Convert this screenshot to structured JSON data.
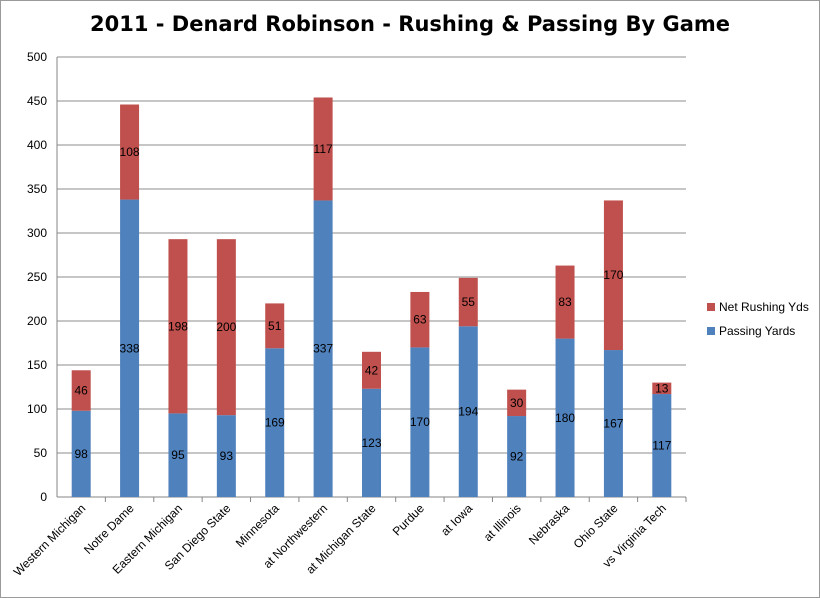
{
  "chart_data": {
    "type": "bar",
    "stacked": true,
    "title": "2011 - Denard Robinson - Rushing & Passing By Game",
    "xlabel": "",
    "ylabel": "",
    "ylim": [
      0,
      500
    ],
    "yticks": [
      0,
      50,
      100,
      150,
      200,
      250,
      300,
      350,
      400,
      450,
      500
    ],
    "grid": true,
    "legend_position": "right",
    "categories": [
      "Western Michigan",
      "Notre Dame",
      "Eastern Michigan",
      "San Diego State",
      "Minnesota",
      "at Northwestern",
      "at Michigan State",
      "Purdue",
      "at Iowa",
      "at Illinois",
      "Nebraska",
      "Ohio State",
      "vs Virginia Tech"
    ],
    "series": [
      {
        "name": "Passing Yards",
        "color": "#4f81bd",
        "values": [
          98,
          338,
          95,
          93,
          169,
          337,
          123,
          170,
          194,
          92,
          180,
          167,
          117
        ]
      },
      {
        "name": "Net Rushing Yds",
        "color": "#c0504d",
        "values": [
          46,
          108,
          198,
          200,
          51,
          117,
          42,
          63,
          55,
          30,
          83,
          170,
          13
        ]
      }
    ],
    "legend_order": [
      "Net Rushing Yds",
      "Passing Yards"
    ]
  }
}
